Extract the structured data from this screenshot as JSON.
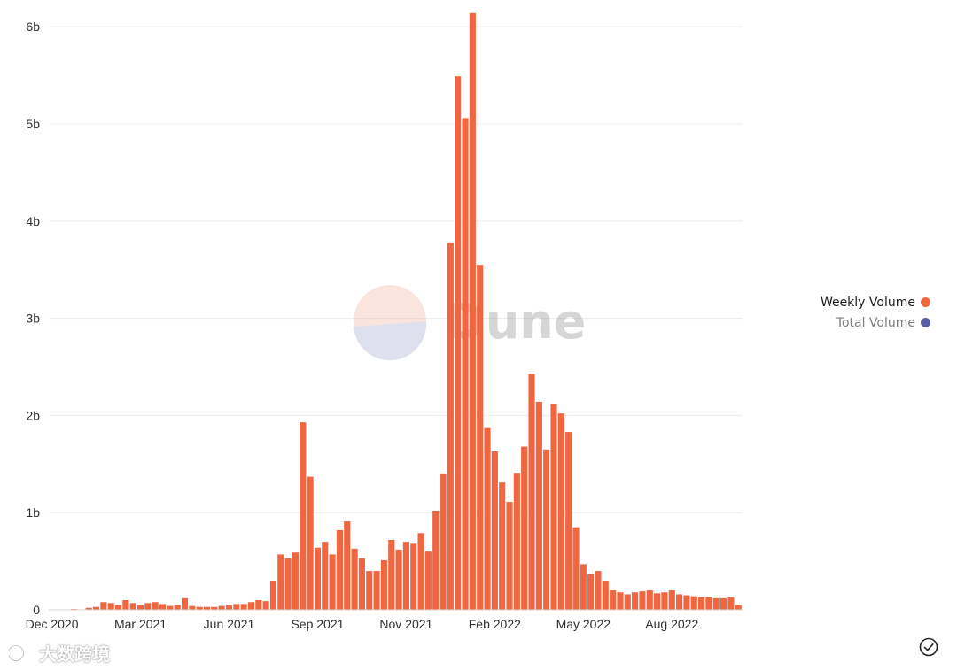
{
  "chart_data": {
    "type": "bar",
    "title": "",
    "xlabel": "",
    "ylabel": "",
    "ylim": [
      0,
      6.2
    ],
    "y_unit": "b",
    "y_ticks": [
      {
        "value": 0,
        "label": "0"
      },
      {
        "value": 1,
        "label": "1b"
      },
      {
        "value": 2,
        "label": "2b"
      },
      {
        "value": 3,
        "label": "3b"
      },
      {
        "value": 4,
        "label": "4b"
      },
      {
        "value": 5,
        "label": "5b"
      },
      {
        "value": 6,
        "label": "6b"
      }
    ],
    "x_ticks": [
      {
        "index": 0,
        "label": "Dec 2020"
      },
      {
        "index": 12,
        "label": "Mar 2021"
      },
      {
        "index": 24,
        "label": "Jun 2021"
      },
      {
        "index": 36,
        "label": "Sep 2021"
      },
      {
        "index": 48,
        "label": "Nov 2021"
      },
      {
        "index": 60,
        "label": "Feb 2022"
      },
      {
        "index": 72,
        "label": "May 2022"
      },
      {
        "index": 84,
        "label": "Aug 2022"
      }
    ],
    "grid": true,
    "legend_position": "right",
    "series": [
      {
        "name": "Weekly Volume",
        "color": "#f06640",
        "values": [
          0.005,
          0.005,
          0.005,
          0.008,
          0.005,
          0.02,
          0.03,
          0.08,
          0.07,
          0.05,
          0.1,
          0.07,
          0.05,
          0.07,
          0.08,
          0.06,
          0.04,
          0.05,
          0.12,
          0.04,
          0.03,
          0.03,
          0.03,
          0.04,
          0.05,
          0.06,
          0.06,
          0.08,
          0.1,
          0.09,
          0.3,
          0.57,
          0.53,
          0.59,
          1.93,
          1.37,
          0.64,
          0.7,
          0.57,
          0.82,
          0.91,
          0.63,
          0.53,
          0.4,
          0.4,
          0.51,
          0.72,
          0.62,
          0.7,
          0.68,
          0.79,
          0.6,
          1.02,
          1.4,
          3.78,
          5.49,
          5.06,
          6.14,
          3.55,
          1.87,
          1.63,
          1.31,
          1.11,
          1.41,
          1.68,
          2.43,
          2.14,
          1.65,
          2.12,
          2.02,
          1.83,
          0.85,
          0.47,
          0.37,
          0.4,
          0.3,
          0.2,
          0.18,
          0.16,
          0.18,
          0.19,
          0.2,
          0.17,
          0.18,
          0.2,
          0.16,
          0.15,
          0.14,
          0.13,
          0.13,
          0.12,
          0.12,
          0.13,
          0.05
        ]
      },
      {
        "name": "Total Volume",
        "color": "#5b5fa1",
        "values": []
      }
    ]
  },
  "legend": {
    "items": [
      {
        "label": "Weekly Volume",
        "color": "#f06640"
      },
      {
        "label": "Total Volume",
        "color": "#5b5fa1"
      }
    ]
  },
  "branding": {
    "logo_text": "Dune",
    "watermark_text": "大数跨境"
  },
  "icons": {
    "confirm": "check-circle-icon"
  }
}
